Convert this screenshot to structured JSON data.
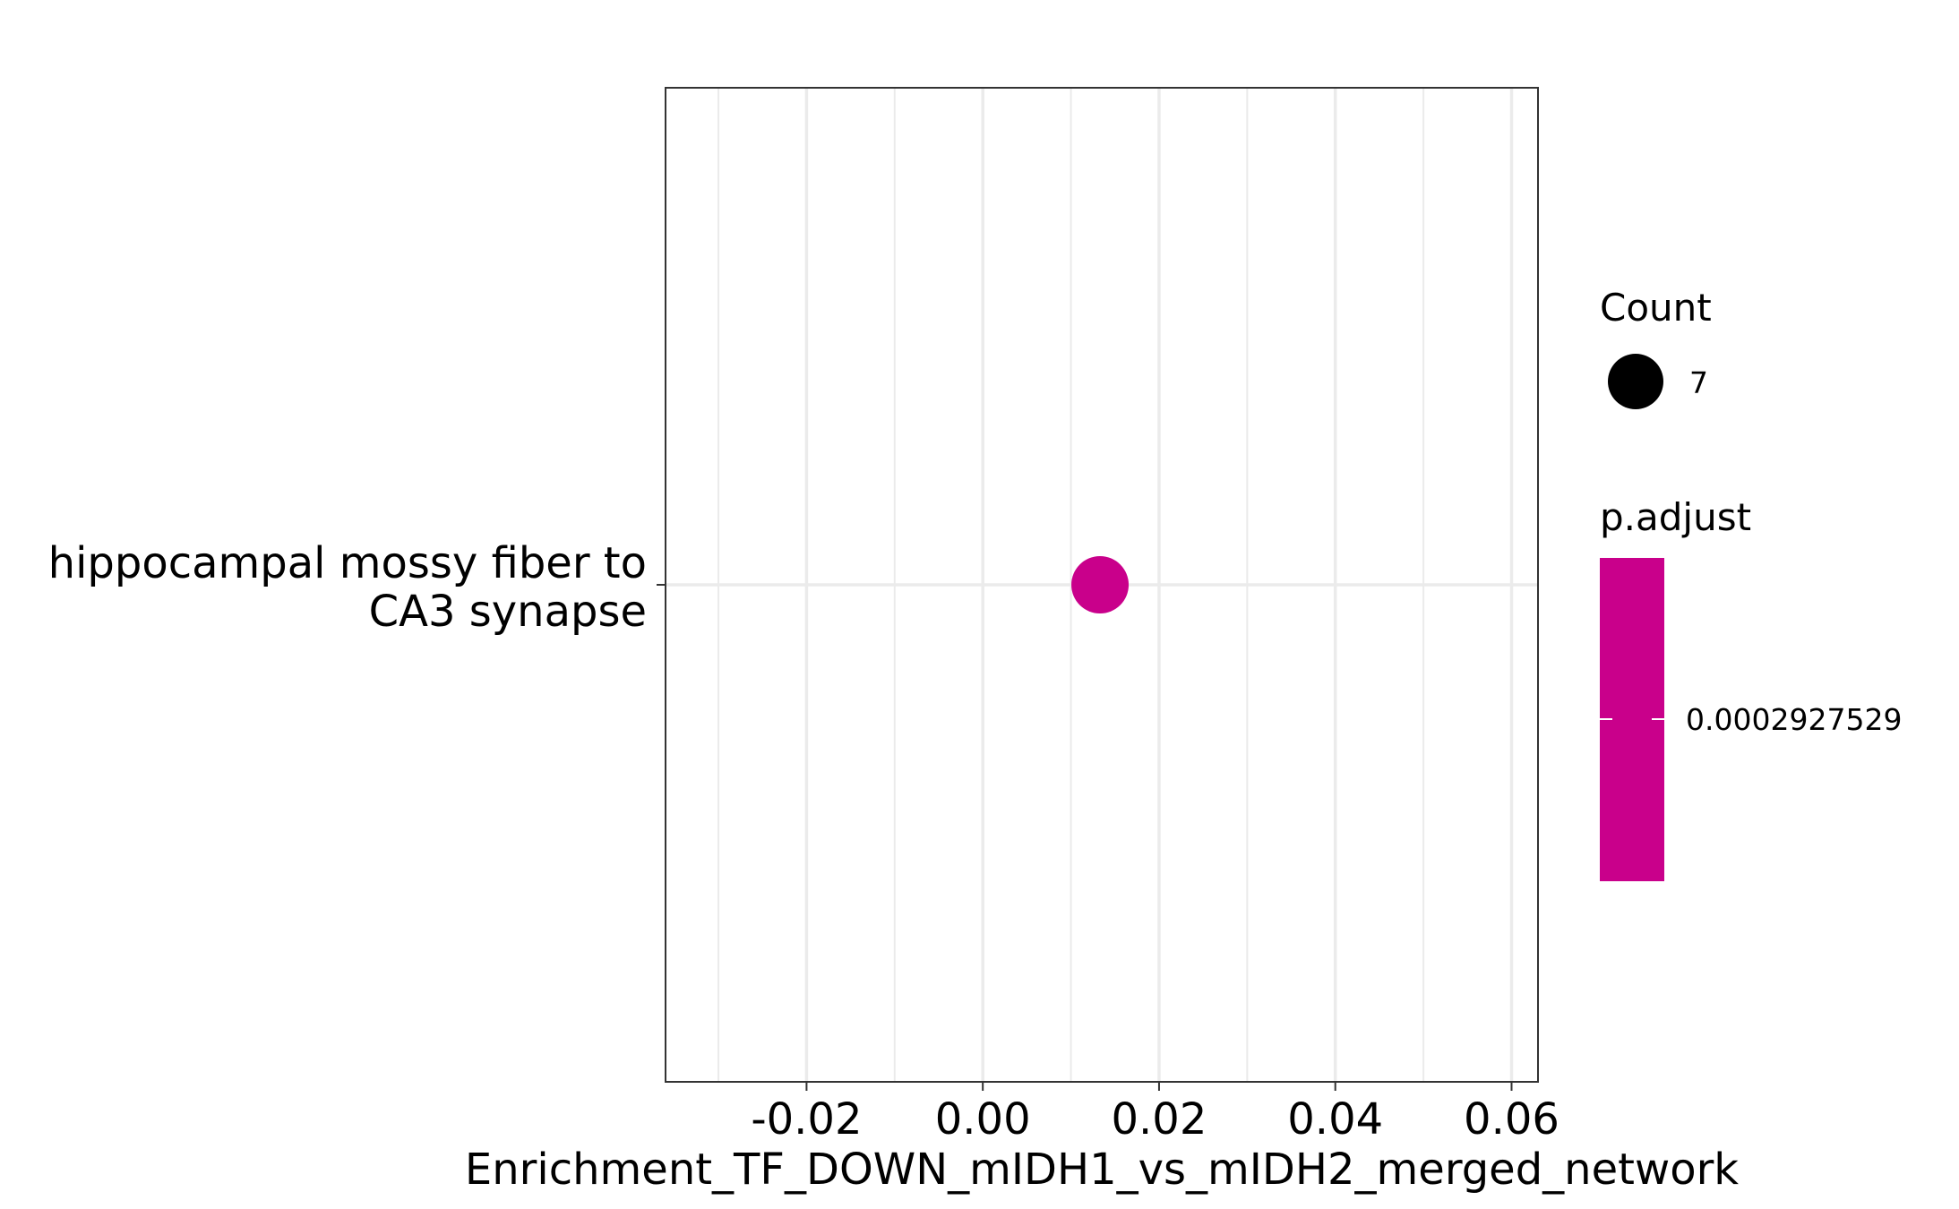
{
  "chart_data": {
    "type": "scatter",
    "title": "",
    "xlabel": "Enrichment_TF_DOWN_mIDH1_vs_mIDH2_merged_network",
    "ylabel": "",
    "xlim": [
      -0.036,
      0.063
    ],
    "x_ticks": [
      "-0.02",
      "0.00",
      "0.02",
      "0.04",
      "0.06"
    ],
    "x_tick_values": [
      -0.02,
      0.0,
      0.02,
      0.04,
      0.06
    ],
    "categories": [
      [
        "hippocampal mossy fiber to",
        "CA3 synapse"
      ]
    ],
    "points": [
      {
        "x": 0.0133,
        "category_index": 0,
        "count": 7,
        "p_adjust": 0.0002927529
      }
    ],
    "grid": true,
    "point_color": "#C9008B",
    "legend_position": "right",
    "legends": {
      "size": {
        "title": "Count",
        "entries": [
          "7"
        ],
        "symbol_color": "#000000"
      },
      "color": {
        "title": "p.adjust",
        "labels": [
          "0.0002927529"
        ],
        "bar_color": "#C9008B"
      }
    }
  }
}
